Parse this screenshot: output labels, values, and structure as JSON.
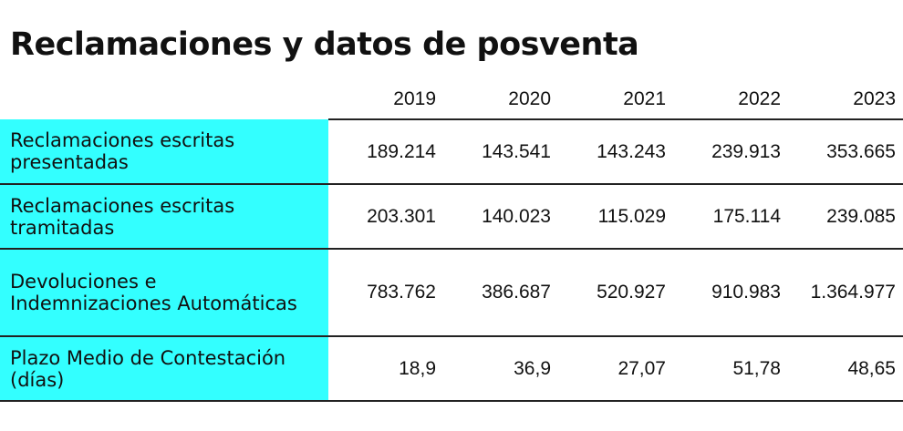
{
  "title": "Reclamaciones y datos de posventa",
  "table": {
    "years": [
      "2019",
      "2020",
      "2021",
      "2022",
      "2023"
    ],
    "rows": [
      {
        "label": "Reclamaciones escritas presentadas",
        "values": [
          "189.214",
          "143.541",
          "143.243",
          "239.913",
          "353.665"
        ]
      },
      {
        "label": "Reclamaciones escritas tramitadas",
        "values": [
          "203.301",
          "140.023",
          "115.029",
          "175.114",
          "239.085"
        ]
      },
      {
        "label": "Devoluciones e Indemnizaciones Automáticas",
        "values": [
          "783.762",
          "386.687",
          "520.927",
          "910.983",
          "1.364.977"
        ]
      },
      {
        "label": "Plazo Medio de Contestación (días)",
        "values": [
          "18,9",
          "36,9",
          "27,07",
          "51,78",
          "48,65"
        ]
      }
    ]
  },
  "colors": {
    "label_background": "#33ffff",
    "rule": "#222222",
    "text": "#111111"
  }
}
